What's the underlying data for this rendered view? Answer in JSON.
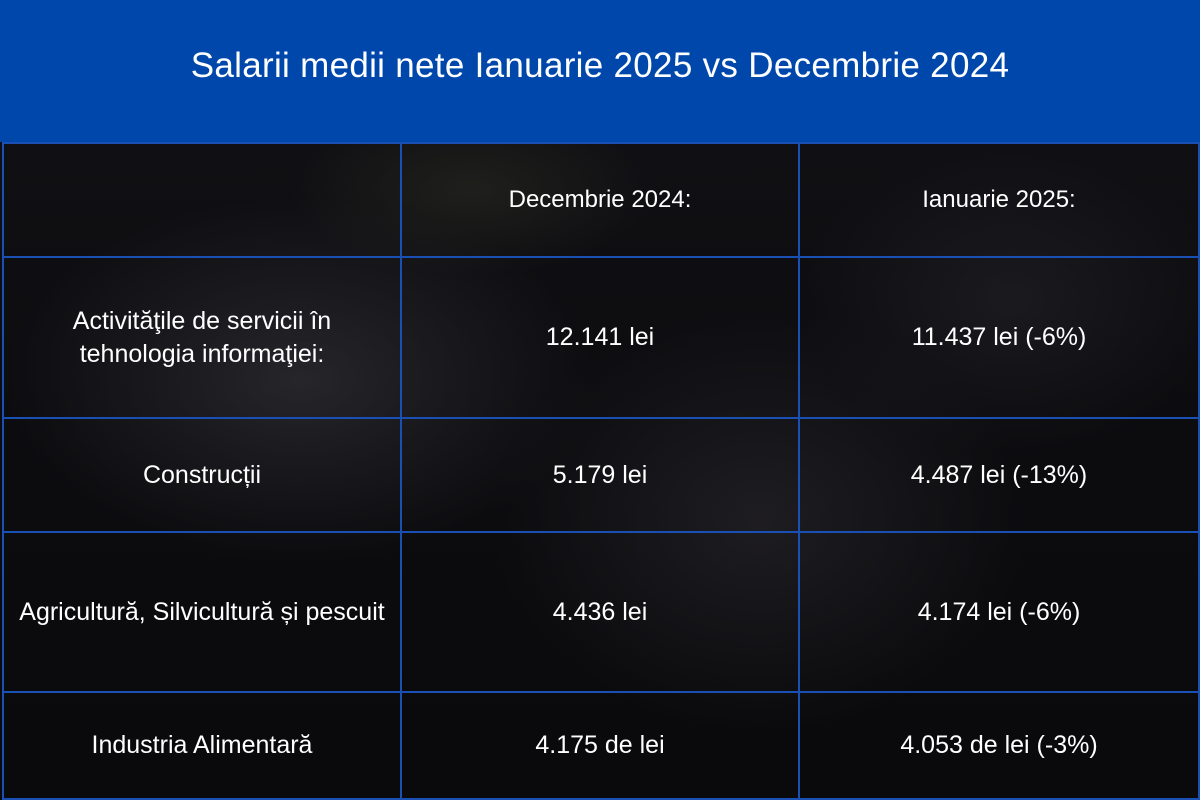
{
  "chart_data": {
    "type": "table",
    "title": "Salarii medii nete Ianuarie 2025 vs Decembrie 2024",
    "columns": [
      "",
      "Decembrie 2024:",
      "Ianuarie 2025:"
    ],
    "rows": [
      {
        "label": "Activităţile de servicii în tehnologia informaţiei:",
        "dec_2024": "12.141 lei",
        "ian_2025": "11.437 lei (-6%)"
      },
      {
        "label": "Construcții",
        "dec_2024": "5.179 lei",
        "ian_2025": "4.487 lei (-13%)"
      },
      {
        "label": "Agricultură, Silvicultură și pescuit",
        "dec_2024": "4.436 lei",
        "ian_2025": "4.174 lei (-6%)"
      },
      {
        "label": "Industria Alimentară",
        "dec_2024": "4.175 de lei",
        "ian_2025": "4.053 de lei (-3%)"
      }
    ]
  },
  "colors": {
    "header_bg": "#0047ab",
    "grid_line": "#1a4fb3",
    "text": "#ffffff"
  }
}
